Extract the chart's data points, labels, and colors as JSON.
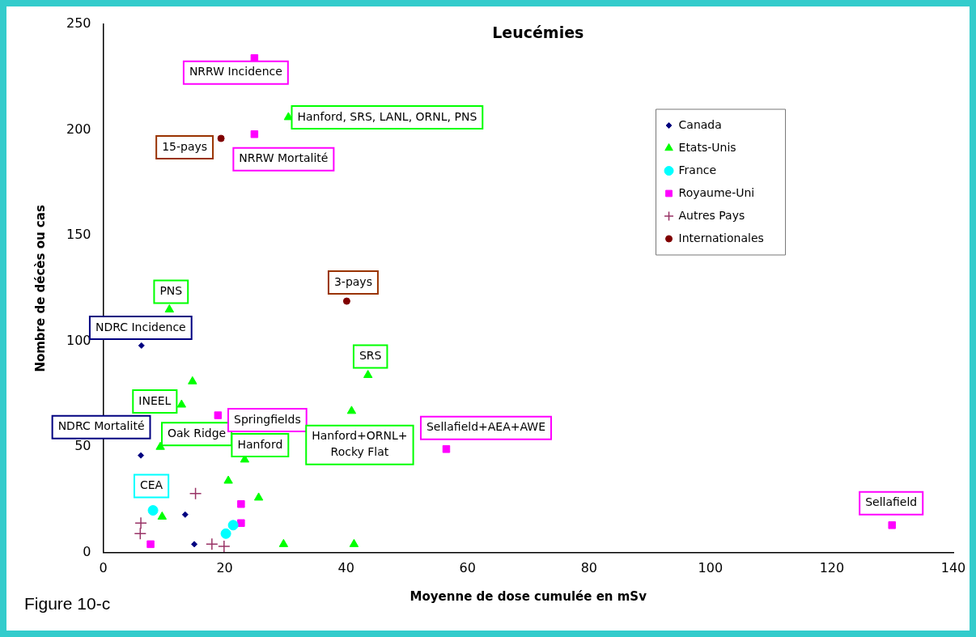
{
  "chart_data": {
    "type": "scatter",
    "title": "Leucémies",
    "xlabel": "Moyenne de dose cumulée en mSv",
    "ylabel": "Nombre de décès ou cas",
    "xlim": [
      0,
      140
    ],
    "xticks": [
      0,
      20,
      40,
      60,
      80,
      100,
      120,
      140
    ],
    "ylim": [
      0,
      250
    ],
    "yticks": [
      0,
      50,
      100,
      150,
      200,
      250
    ],
    "grid": false,
    "legend": "right",
    "series": [
      {
        "name": "Canada",
        "color": "#000080",
        "marker": "diamond",
        "x": [
          6.3,
          6.2,
          13.5,
          15
        ],
        "values": [
          98,
          46,
          18,
          4
        ]
      },
      {
        "name": "Etats-Unis",
        "color": "#00ff00",
        "marker": "triangle",
        "x": [
          10.9,
          30.5,
          14.7,
          12.9,
          9.4,
          23.3,
          20.6,
          25.6,
          9.7,
          29.7,
          41.3,
          43.6,
          40.9
        ],
        "values": [
          115,
          206,
          81,
          70,
          50,
          44,
          34,
          26,
          17,
          4,
          4,
          84,
          67
        ]
      },
      {
        "name": "France",
        "color": "#00ffff",
        "marker": "circle",
        "x": [
          8.2,
          20.2,
          21.4
        ],
        "values": [
          20,
          9,
          13
        ]
      },
      {
        "name": "Royaume-Uni",
        "color": "#ff00ff",
        "marker": "square",
        "x": [
          24.9,
          24.9,
          18.9,
          22.7,
          22.7,
          7.8,
          56.5,
          129.9
        ],
        "values": [
          234,
          198,
          65,
          23,
          14,
          4,
          49,
          13
        ]
      },
      {
        "name": "Autres Pays",
        "color": "#993366",
        "marker": "cross",
        "x": [
          6.2,
          6.1,
          15.2,
          17.9,
          19.9
        ],
        "values": [
          14,
          9,
          28,
          4,
          3
        ]
      },
      {
        "name": "Internationales",
        "color": "#800000",
        "marker": "circle",
        "x": [
          19.4,
          40.1
        ],
        "values": [
          196,
          119
        ]
      }
    ],
    "annotations": [
      {
        "text": "NRRW Incidence",
        "x": 24.9,
        "y": 234
      },
      {
        "text": "Hanford, SRS, LANL, ORNL, PNS",
        "x": 30.5,
        "y": 206
      },
      {
        "text": "15-pays",
        "x": 19.4,
        "y": 196
      },
      {
        "text": "NRRW Mortalité",
        "x": 24.9,
        "y": 198
      },
      {
        "text": "3-pays",
        "x": 40.1,
        "y": 119
      },
      {
        "text": "PNS",
        "x": 10.9,
        "y": 115
      },
      {
        "text": "NDRC Incidence",
        "x": 6.3,
        "y": 98
      },
      {
        "text": "SRS",
        "x": 43.6,
        "y": 84
      },
      {
        "text": "INEEL",
        "x": 12.9,
        "y": 70
      },
      {
        "text": "NDRC Mortalité",
        "x": 6.2,
        "y": 46
      },
      {
        "text": "Oak Ridge",
        "x": 9.4,
        "y": 50
      },
      {
        "text": "Springfields",
        "x": 18.9,
        "y": 65
      },
      {
        "text": "Hanford",
        "x": 23.3,
        "y": 44
      },
      {
        "text": "Hanford+ORNL+ Rocky Flat",
        "x": 40.9,
        "y": 67
      },
      {
        "text": "Sellafield+AEA+AWE",
        "x": 56.5,
        "y": 49
      },
      {
        "text": "Sellafield",
        "x": 129.9,
        "y": 13
      },
      {
        "text": "CEA",
        "x": 8.2,
        "y": 20
      },
      "Figure 10-c"
    ]
  }
}
